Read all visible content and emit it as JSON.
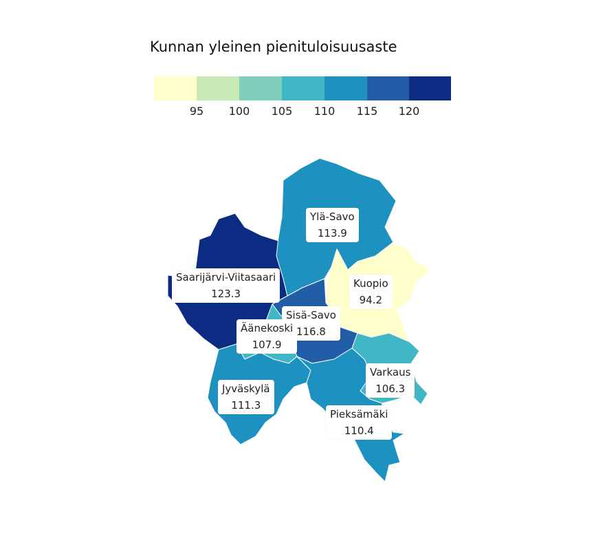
{
  "title": "Kunnan yleinen pienituloisuusaste",
  "legend": {
    "bins": [
      {
        "color": "#ffffcc"
      },
      {
        "color": "#c7e9b4",
        "label": "95"
      },
      {
        "color": "#7fcdbb",
        "label": "100"
      },
      {
        "color": "#41b6c4",
        "label": "105"
      },
      {
        "color": "#1d91c0",
        "label": "110"
      },
      {
        "color": "#225ea8",
        "label": "115"
      },
      {
        "color": "#0c2c84",
        "label": "120"
      }
    ]
  },
  "regions": [
    {
      "name": "Ylä-Savo",
      "value": "113.9",
      "color": "#1d91c0"
    },
    {
      "name": "Saarijärvi-Viitasaari",
      "value": "123.3",
      "color": "#0c2c84"
    },
    {
      "name": "Kuopio",
      "value": "94.2",
      "color": "#ffffcc"
    },
    {
      "name": "Sisä-Savo",
      "value": "116.8",
      "color": "#225ea8"
    },
    {
      "name": "Äänekoski",
      "value": "107.9",
      "color": "#41b6c4"
    },
    {
      "name": "Varkaus",
      "value": "106.3",
      "color": "#41b6c4"
    },
    {
      "name": "Jyväskylä",
      "value": "111.3",
      "color": "#1d91c0"
    },
    {
      "name": "Pieksämäki",
      "value": "110.4",
      "color": "#1d91c0"
    }
  ]
}
